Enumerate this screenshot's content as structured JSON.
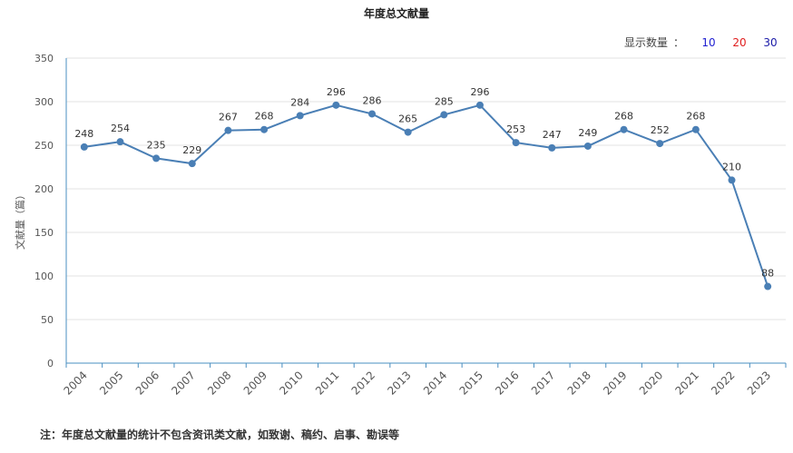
{
  "title": "年度总文献量",
  "count_switch": {
    "label": "显示数量",
    "colon": "：",
    "options": [
      "10",
      "20",
      "30"
    ]
  },
  "note": "注：年度总文献量的统计不包含资讯类文献，如致谢、稿约、启事、勘误等",
  "chart_data": {
    "type": "line",
    "title": "年度总文献量",
    "xlabel": "",
    "ylabel": "文献量（篇）",
    "ylim": [
      0,
      350
    ],
    "yticks": [
      0,
      50,
      100,
      150,
      200,
      250,
      300,
      350
    ],
    "grid": true,
    "categories": [
      "2004",
      "2005",
      "2006",
      "2007",
      "2008",
      "2009",
      "2010",
      "2011",
      "2012",
      "2013",
      "2014",
      "2015",
      "2016",
      "2017",
      "2018",
      "2019",
      "2020",
      "2021",
      "2022",
      "2023"
    ],
    "values": [
      248,
      254,
      235,
      229,
      267,
      268,
      284,
      296,
      286,
      265,
      285,
      296,
      253,
      247,
      249,
      268,
      252,
      268,
      210,
      88
    ],
    "line_color": "#4a7fb5",
    "grid_color": "#e3e3e3",
    "axis_color": "#4a8fc0"
  }
}
